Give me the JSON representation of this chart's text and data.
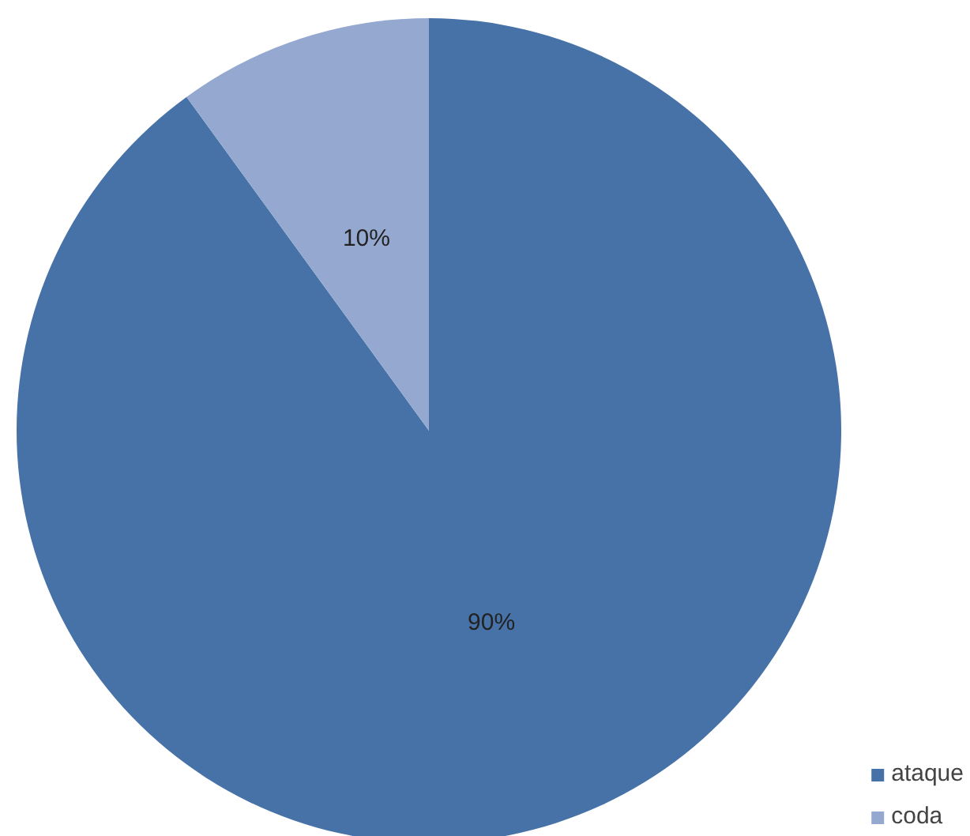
{
  "chart_data": {
    "type": "pie",
    "categories": [
      "ataque",
      "coda"
    ],
    "values": [
      90,
      10
    ],
    "colors": [
      "#4772a8",
      "#95a9d0"
    ],
    "value_labels": [
      "90%",
      "10%"
    ],
    "legend": "bottom right"
  }
}
